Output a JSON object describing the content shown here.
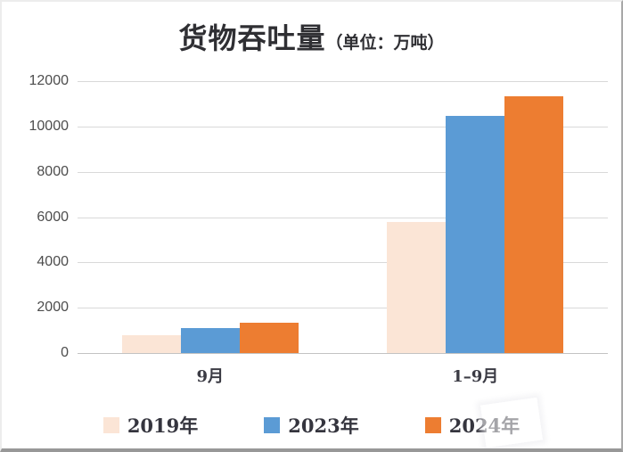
{
  "chart": {
    "title_main": "货物吞吐量",
    "title_unit": "（单位：万吨）"
  },
  "chart_data": {
    "type": "bar",
    "title": "货物吞吐量（单位：万吨）",
    "categories": [
      "9月",
      "1–9月"
    ],
    "series": [
      {
        "name": "2019年",
        "color": "#fbe5d6",
        "values": [
          800,
          5800
        ]
      },
      {
        "name": "2023年",
        "color": "#5b9bd5",
        "values": [
          1100,
          10450
        ]
      },
      {
        "name": "2024年",
        "color": "#ed7d31",
        "values": [
          1350,
          11350
        ]
      }
    ],
    "ylim": [
      0,
      12000
    ],
    "yticks": [
      0,
      2000,
      4000,
      6000,
      8000,
      10000,
      12000
    ],
    "grid": true,
    "legend_position": "bottom",
    "colors": {
      "gridline": "#d9d9d9",
      "tick_text": "#4d4d4d",
      "label_text": "#3b3b44",
      "title_text": "#2f2f33"
    }
  }
}
